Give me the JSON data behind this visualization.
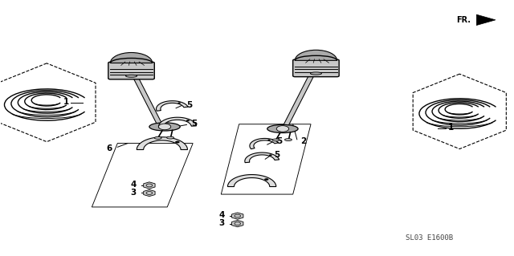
{
  "bg_color": "#ffffff",
  "diagram_code": "SL03 E1600B",
  "line_color": "#000000",
  "text_color": "#000000",
  "gray_fill": "#c8c8c8",
  "gray_mid": "#aaaaaa",
  "gray_light": "#dddddd"
}
